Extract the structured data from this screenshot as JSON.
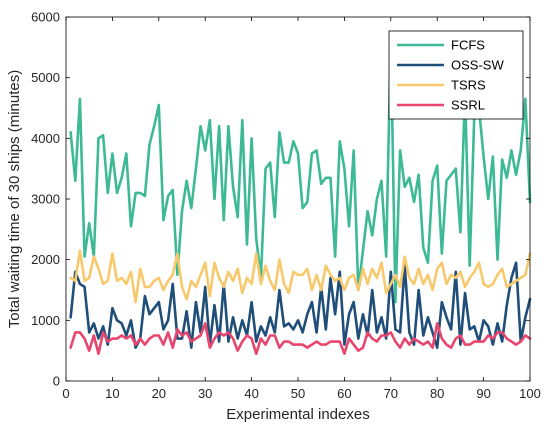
{
  "chart_data": {
    "type": "line",
    "xlabel": "Experimental indexes",
    "ylabel": "Total waiting time of 30 ships (minutes)",
    "xlim": [
      0,
      100
    ],
    "ylim": [
      0,
      6000
    ],
    "xticks": [
      0,
      10,
      20,
      30,
      40,
      50,
      60,
      70,
      80,
      90,
      100
    ],
    "yticks": [
      0,
      1000,
      2000,
      3000,
      4000,
      5000,
      6000
    ],
    "grid": false,
    "legend_position": "top-right",
    "x": [
      1,
      2,
      3,
      4,
      5,
      6,
      7,
      8,
      9,
      10,
      11,
      12,
      13,
      14,
      15,
      16,
      17,
      18,
      19,
      20,
      21,
      22,
      23,
      24,
      25,
      26,
      27,
      28,
      29,
      30,
      31,
      32,
      33,
      34,
      35,
      36,
      37,
      38,
      39,
      40,
      41,
      42,
      43,
      44,
      45,
      46,
      47,
      48,
      49,
      50,
      51,
      52,
      53,
      54,
      55,
      56,
      57,
      58,
      59,
      60,
      61,
      62,
      63,
      64,
      65,
      66,
      67,
      68,
      69,
      70,
      71,
      72,
      73,
      74,
      75,
      76,
      77,
      78,
      79,
      80,
      81,
      82,
      83,
      84,
      85,
      86,
      87,
      88,
      89,
      90,
      91,
      92,
      93,
      94,
      95,
      96,
      97,
      98,
      99,
      100
    ],
    "series": [
      {
        "name": "FCFS",
        "color": "#3dba95",
        "values": [
          4100,
          3300,
          4650,
          2050,
          2600,
          2050,
          4000,
          4050,
          3100,
          3750,
          3100,
          3350,
          3750,
          2550,
          3100,
          3100,
          3050,
          3900,
          4200,
          4550,
          2650,
          3050,
          3150,
          1750,
          2800,
          3300,
          2850,
          3500,
          4200,
          3800,
          4300,
          3000,
          4200,
          2650,
          4200,
          3200,
          2700,
          4300,
          2250,
          4000,
          2350,
          1700,
          3500,
          3600,
          2700,
          4100,
          3600,
          3600,
          3950,
          3750,
          2850,
          2950,
          3750,
          3800,
          3250,
          3350,
          3350,
          2050,
          3950,
          3500,
          2550,
          3800,
          1500,
          2150,
          2800,
          2400,
          3000,
          3300,
          2050,
          5700,
          1300,
          3800,
          3200,
          3350,
          2950,
          3400,
          2200,
          1950,
          3300,
          3550,
          2100,
          3300,
          3400,
          3500,
          2450,
          4750,
          1900,
          4400,
          4500,
          3700,
          3000,
          3700,
          2000,
          3650,
          3350,
          3800,
          3400,
          3800,
          4650,
          2950
        ]
      },
      {
        "name": "OSS-SW",
        "color": "#1f4e79",
        "values": [
          1050,
          1800,
          1600,
          1550,
          800,
          950,
          700,
          900,
          600,
          1200,
          1000,
          950,
          750,
          1000,
          550,
          700,
          1400,
          1100,
          1200,
          1300,
          850,
          1000,
          1600,
          700,
          700,
          1150,
          550,
          1300,
          800,
          1550,
          600,
          1250,
          650,
          1600,
          650,
          1050,
          700,
          1000,
          750,
          1300,
          650,
          900,
          750,
          1050,
          800,
          1500,
          900,
          950,
          850,
          1000,
          800,
          1100,
          1300,
          800,
          1550,
          850,
          1700,
          1100,
          1800,
          600,
          1100,
          1300,
          700,
          1100,
          750,
          1500,
          800,
          1050,
          700,
          1800,
          850,
          800,
          1900,
          800,
          600,
          1500,
          750,
          1050,
          800,
          550,
          1300,
          1050,
          850,
          1800,
          600,
          1450,
          850,
          900,
          650,
          1000,
          900,
          600,
          950,
          650,
          1250,
          1700,
          1950,
          650,
          1050,
          1350
        ]
      },
      {
        "name": "TSRS",
        "color": "#f7c96c",
        "values": [
          1700,
          1650,
          2150,
          1650,
          1700,
          2050,
          1850,
          1600,
          1650,
          2100,
          1650,
          1700,
          1600,
          1800,
          1300,
          1850,
          1550,
          1550,
          1650,
          1700,
          1500,
          1650,
          1750,
          2100,
          1550,
          1350,
          1650,
          1550,
          1750,
          1950,
          1400,
          1950,
          1700,
          1550,
          1800,
          1650,
          1850,
          1450,
          1700,
          1600,
          2100,
          1600,
          1900,
          1650,
          1500,
          2000,
          1600,
          1450,
          1800,
          1750,
          1750,
          1850,
          1500,
          1750,
          1500,
          1900,
          1750,
          1650,
          1700,
          1500,
          1700,
          1750,
          1500,
          1850,
          1600,
          1850,
          1700,
          1950,
          1450,
          1600,
          1750,
          1550,
          2050,
          1700,
          1600,
          1850,
          1600,
          1750,
          1500,
          1850,
          1950,
          1600,
          1750,
          1700,
          1800,
          1550,
          1700,
          1800,
          1950,
          1600,
          1550,
          1600,
          1750,
          1850,
          1550,
          1600,
          1650,
          1700,
          1750,
          2100
        ]
      },
      {
        "name": "SSRL",
        "color": "#e8466f",
        "values": [
          550,
          800,
          800,
          700,
          500,
          750,
          450,
          800,
          650,
          700,
          700,
          750,
          700,
          750,
          600,
          700,
          600,
          700,
          750,
          750,
          600,
          800,
          550,
          850,
          750,
          800,
          650,
          700,
          750,
          950,
          550,
          700,
          800,
          750,
          800,
          700,
          500,
          650,
          750,
          700,
          450,
          700,
          600,
          750,
          750,
          550,
          650,
          650,
          600,
          600,
          600,
          550,
          600,
          650,
          600,
          600,
          650,
          650,
          650,
          450,
          700,
          600,
          500,
          550,
          800,
          700,
          650,
          750,
          750,
          800,
          650,
          550,
          700,
          600,
          700,
          650,
          600,
          650,
          550,
          950,
          700,
          600,
          550,
          700,
          750,
          600,
          600,
          650,
          650,
          650,
          750,
          700,
          800,
          800,
          700,
          650,
          600,
          650,
          750,
          700
        ]
      }
    ]
  }
}
